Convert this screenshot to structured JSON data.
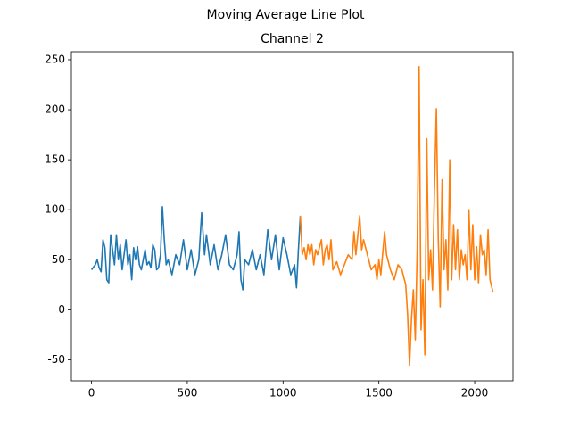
{
  "chart_data": {
    "type": "line",
    "title": "Moving Average Line Plot",
    "subtitle": "Channel 2",
    "xlim": [
      -105,
      2200
    ],
    "xticks": [
      0,
      500,
      1000,
      1500,
      2000
    ],
    "ylim": [
      -71,
      258
    ],
    "yticks": [
      -50,
      0,
      50,
      100,
      150,
      200,
      250
    ],
    "grid": false,
    "series": [
      {
        "color": "#1f77b4",
        "x": [
          0,
          20,
          30,
          40,
          50,
          60,
          70,
          80,
          90,
          100,
          110,
          120,
          130,
          140,
          150,
          160,
          170,
          180,
          190,
          200,
          210,
          220,
          230,
          240,
          250,
          260,
          270,
          280,
          290,
          300,
          310,
          320,
          330,
          340,
          350,
          360,
          370,
          380,
          390,
          400,
          420,
          440,
          460,
          480,
          500,
          520,
          540,
          560,
          575,
          590,
          600,
          620,
          640,
          660,
          680,
          700,
          720,
          740,
          760,
          770,
          780,
          790,
          800,
          820,
          840,
          860,
          880,
          900,
          920,
          940,
          960,
          980,
          1000,
          1020,
          1040,
          1060,
          1070,
          1080,
          1090
        ],
        "values": [
          40,
          45,
          50,
          42,
          38,
          70,
          62,
          30,
          27,
          75,
          60,
          45,
          75,
          50,
          65,
          40,
          55,
          70,
          45,
          55,
          30,
          62,
          50,
          63,
          45,
          40,
          50,
          60,
          45,
          48,
          42,
          65,
          60,
          40,
          42,
          55,
          103,
          70,
          45,
          50,
          35,
          55,
          45,
          70,
          40,
          60,
          35,
          50,
          97,
          55,
          75,
          45,
          65,
          40,
          55,
          75,
          45,
          40,
          55,
          78,
          30,
          20,
          50,
          45,
          60,
          40,
          55,
          35,
          80,
          50,
          75,
          40,
          72,
          55,
          35,
          45,
          22,
          60,
          94
        ]
      },
      {
        "color": "#ff7f0e",
        "x": [
          1090,
          1100,
          1110,
          1120,
          1130,
          1140,
          1150,
          1160,
          1170,
          1180,
          1200,
          1210,
          1220,
          1230,
          1240,
          1250,
          1260,
          1280,
          1300,
          1320,
          1340,
          1360,
          1370,
          1380,
          1400,
          1410,
          1420,
          1440,
          1460,
          1480,
          1490,
          1500,
          1510,
          1530,
          1540,
          1560,
          1580,
          1600,
          1620,
          1640,
          1650,
          1660,
          1670,
          1680,
          1690,
          1700,
          1710,
          1720,
          1730,
          1740,
          1750,
          1760,
          1770,
          1780,
          1790,
          1800,
          1810,
          1820,
          1830,
          1840,
          1850,
          1860,
          1870,
          1880,
          1890,
          1900,
          1910,
          1920,
          1930,
          1940,
          1950,
          1960,
          1970,
          1980,
          1990,
          2000,
          2010,
          2020,
          2030,
          2040,
          2050,
          2060,
          2070,
          2080,
          2095
        ],
        "values": [
          94,
          55,
          62,
          50,
          65,
          55,
          65,
          45,
          60,
          55,
          70,
          45,
          60,
          65,
          50,
          70,
          40,
          48,
          35,
          45,
          55,
          50,
          78,
          55,
          94,
          60,
          70,
          55,
          40,
          45,
          30,
          50,
          35,
          78,
          55,
          40,
          30,
          45,
          40,
          25,
          -5,
          -56,
          -10,
          20,
          -30,
          60,
          243,
          -20,
          30,
          -45,
          171,
          30,
          60,
          20,
          120,
          201,
          70,
          3,
          130,
          40,
          70,
          20,
          150,
          30,
          85,
          40,
          80,
          30,
          60,
          45,
          55,
          30,
          100,
          40,
          85,
          30,
          63,
          27,
          75,
          55,
          60,
          35,
          80,
          30,
          18
        ]
      }
    ]
  }
}
